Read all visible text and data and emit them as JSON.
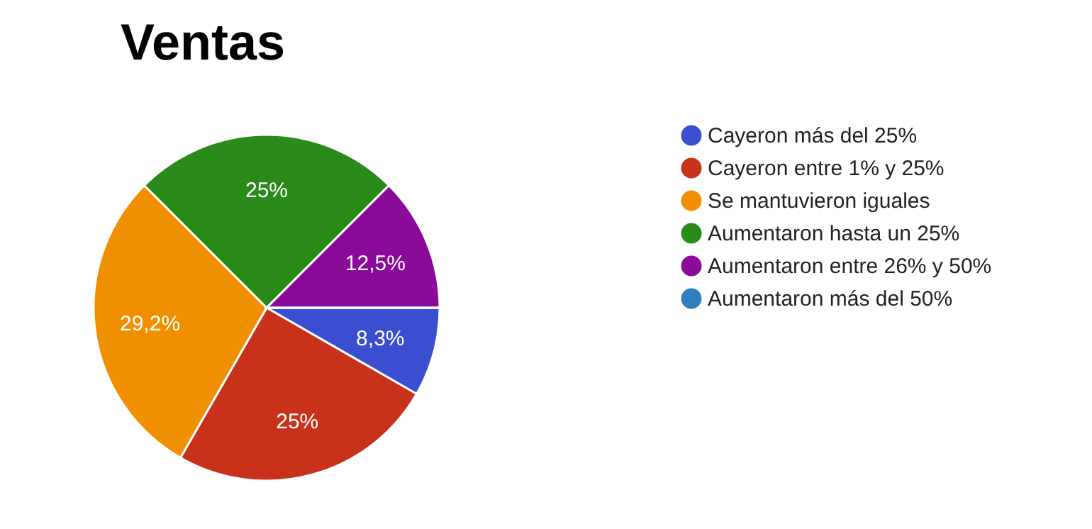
{
  "chart_data": {
    "type": "pie",
    "title": "Ventas",
    "categories": [
      "Cayeron más del 25%",
      "Cayeron entre 1% y 25%",
      "Se mantuvieron iguales",
      "Aumentaron hasta un 25%",
      "Aumentaron entre 26% y 50%",
      "Aumentaron más del 50%"
    ],
    "values": [
      8.3,
      25,
      29.2,
      25,
      12.5,
      0
    ],
    "colors": [
      "#3a4fcf",
      "#c9321a",
      "#f09000",
      "#2a8a1a",
      "#8a0a9a",
      "#2f7fc1"
    ],
    "value_labels": [
      "8,3%",
      "25%",
      "29,2%",
      "25%",
      "12,5%",
      null
    ],
    "legend": "right"
  }
}
